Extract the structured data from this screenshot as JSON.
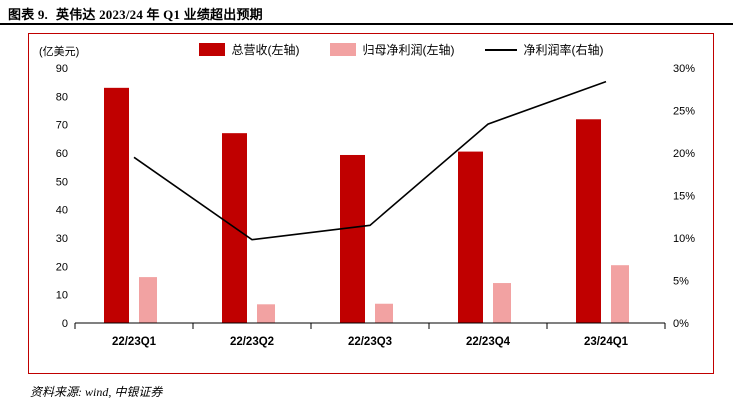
{
  "header": {
    "title_prefix": "图表 9."
  },
  "footer": {
    "source": "资料来源: wind, 中银证券"
  },
  "chart_data": {
    "type": "bar",
    "title": "英伟达 2023/24 年 Q1 业绩超出预期",
    "unit_label": "(亿美元)",
    "categories": [
      "22/23Q1",
      "22/23Q2",
      "22/23Q3",
      "22/23Q4",
      "23/24Q1"
    ],
    "series": [
      {
        "name": "总营收(左轴)",
        "type": "bar",
        "axis": "left",
        "color": "#C00000",
        "values": [
          83.0,
          67.0,
          59.3,
          60.5,
          71.9
        ]
      },
      {
        "name": "归母净利润(左轴)",
        "type": "bar",
        "axis": "left",
        "color": "#F2A2A2",
        "values": [
          16.2,
          6.6,
          6.8,
          14.1,
          20.4
        ]
      },
      {
        "name": "净利润率(右轴)",
        "type": "line",
        "axis": "right",
        "color": "#000000",
        "values": [
          19.5,
          9.8,
          11.5,
          23.4,
          28.4
        ]
      }
    ],
    "left_axis": {
      "min": 0,
      "max": 90,
      "step": 10
    },
    "right_axis": {
      "min": 0,
      "max": 30,
      "step": 5,
      "suffix": "%"
    },
    "legend_position": "top",
    "grid": false
  },
  "colors": {
    "revenue_bar": "#C00000",
    "profit_bar": "#F2A2A2",
    "margin_line": "#000000",
    "frame_border": "#C00000"
  }
}
